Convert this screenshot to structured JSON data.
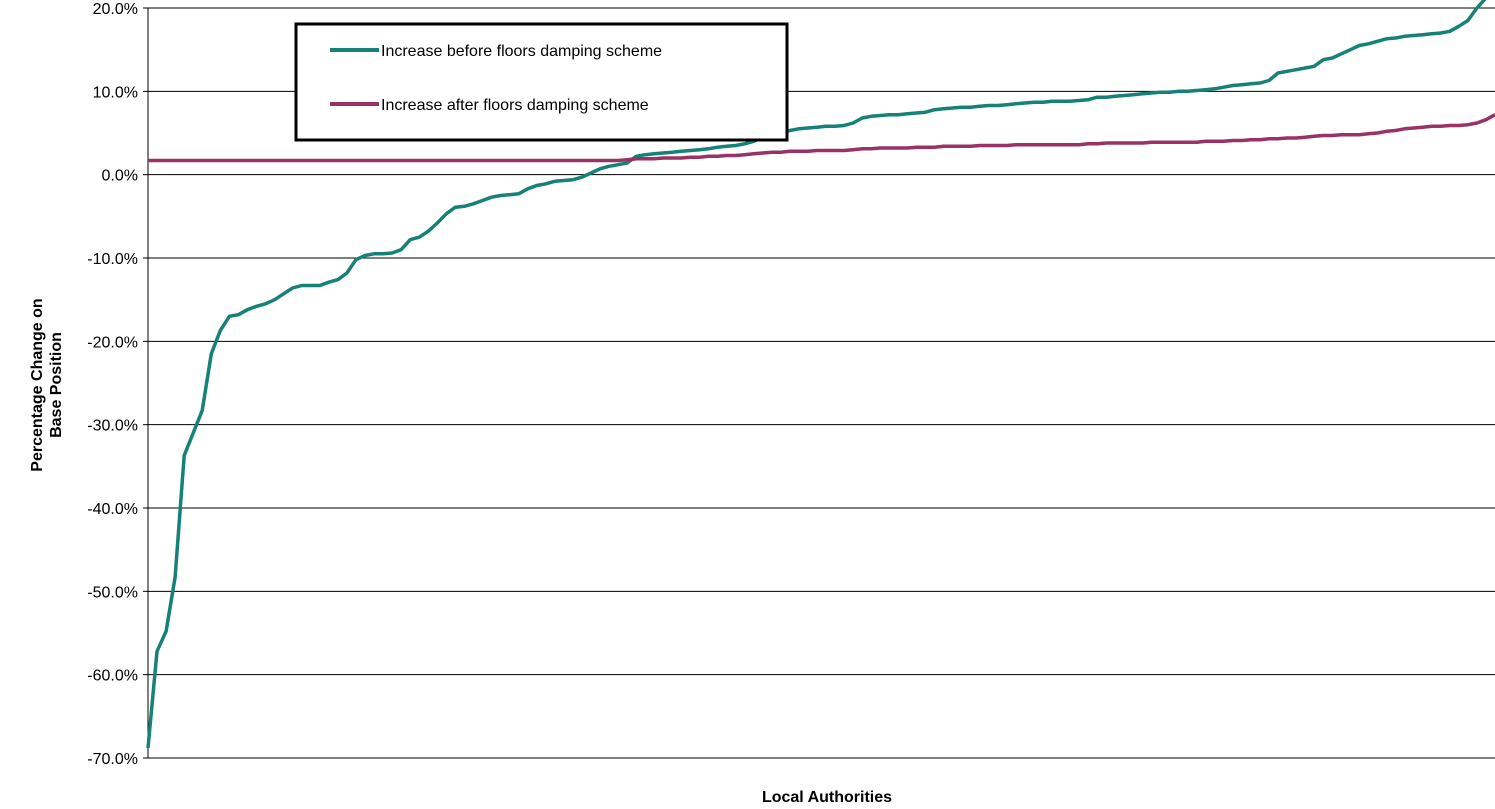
{
  "chart_data": {
    "type": "line",
    "xlabel": "Local Authorities",
    "ylabel_lines": [
      "Percentage Change on",
      "Base Position"
    ],
    "ylim": [
      -0.7,
      0.2
    ],
    "yticks": [
      0.2,
      0.1,
      0.0,
      -0.1,
      -0.2,
      -0.3,
      -0.4,
      -0.5,
      -0.6,
      -0.7
    ],
    "ytick_labels": [
      "20.0%",
      "10.0%",
      "0.0%",
      "-10.0%",
      "-20.0%",
      "-30.0%",
      "-40.0%",
      "-50.0%",
      "-60.0%",
      "-70.0%"
    ],
    "grid": true,
    "legend_position": "top-left",
    "xlim": [
      1,
      150
    ],
    "series": [
      {
        "name": "Increase before floors damping scheme",
        "color": "#168277",
        "x": [
          1,
          2,
          3,
          4,
          5,
          6,
          7,
          8,
          9,
          10,
          11,
          12,
          13,
          14,
          15,
          16,
          17,
          18,
          19,
          20,
          21,
          22,
          23,
          24,
          25,
          26,
          27,
          28,
          29,
          30,
          31,
          32,
          33,
          34,
          35,
          36,
          37,
          38,
          39,
          40,
          41,
          42,
          43,
          44,
          45,
          46,
          47,
          48,
          49,
          50,
          51,
          52,
          53,
          54,
          55,
          56,
          57,
          58,
          59,
          60,
          61,
          62,
          63,
          64,
          65,
          66,
          67,
          68,
          69,
          70,
          71,
          72,
          73,
          74,
          75,
          76,
          77,
          78,
          79,
          80,
          81,
          82,
          83,
          84,
          85,
          86,
          87,
          88,
          89,
          90,
          91,
          92,
          93,
          94,
          95,
          96,
          97,
          98,
          99,
          100,
          101,
          102,
          103,
          104,
          105,
          106,
          107,
          108,
          109,
          110,
          111,
          112,
          113,
          114,
          115,
          116,
          117,
          118,
          119,
          120,
          121,
          122,
          123,
          124,
          125,
          126,
          127,
          128,
          129,
          130,
          131,
          132,
          133,
          134,
          135,
          136,
          137,
          138,
          139,
          140,
          141,
          142,
          143,
          144,
          145,
          146,
          147,
          148,
          149,
          150
        ],
        "values": [
          -0.688,
          -0.572,
          -0.548,
          -0.483,
          -0.337,
          -0.31,
          -0.283,
          -0.215,
          -0.187,
          -0.17,
          -0.168,
          -0.162,
          -0.158,
          -0.155,
          -0.15,
          -0.143,
          -0.136,
          -0.133,
          -0.133,
          -0.133,
          -0.129,
          -0.126,
          -0.118,
          -0.102,
          -0.097,
          -0.095,
          -0.095,
          -0.094,
          -0.09,
          -0.078,
          -0.075,
          -0.068,
          -0.058,
          -0.047,
          -0.039,
          -0.038,
          -0.035,
          -0.031,
          -0.027,
          -0.025,
          -0.024,
          -0.023,
          -0.017,
          -0.013,
          -0.011,
          -0.008,
          -0.007,
          -0.006,
          -0.003,
          0.002,
          0.007,
          0.01,
          0.012,
          0.014,
          0.022,
          0.024,
          0.025,
          0.026,
          0.027,
          0.028,
          0.029,
          0.03,
          0.031,
          0.033,
          0.034,
          0.035,
          0.037,
          0.04,
          0.045,
          0.048,
          0.05,
          0.053,
          0.055,
          0.056,
          0.057,
          0.058,
          0.058,
          0.059,
          0.062,
          0.068,
          0.07,
          0.071,
          0.072,
          0.072,
          0.073,
          0.074,
          0.075,
          0.078,
          0.079,
          0.08,
          0.081,
          0.081,
          0.082,
          0.083,
          0.083,
          0.084,
          0.085,
          0.086,
          0.087,
          0.087,
          0.088,
          0.088,
          0.088,
          0.089,
          0.09,
          0.093,
          0.093,
          0.094,
          0.095,
          0.096,
          0.097,
          0.098,
          0.099,
          0.099,
          0.1,
          0.1,
          0.101,
          0.102,
          0.103,
          0.105,
          0.107,
          0.108,
          0.109,
          0.11,
          0.113,
          0.122,
          0.124,
          0.126,
          0.128,
          0.13,
          0.138,
          0.14,
          0.145,
          0.15,
          0.155,
          0.157,
          0.16,
          0.163,
          0.164,
          0.166,
          0.167,
          0.168,
          0.169,
          0.17,
          0.172,
          0.178,
          0.185,
          0.2,
          0.212,
          0.215
        ]
      },
      {
        "name": "Increase after floors damping scheme",
        "color": "#993366",
        "x": [
          1,
          2,
          3,
          4,
          5,
          6,
          7,
          8,
          9,
          10,
          11,
          12,
          13,
          14,
          15,
          16,
          17,
          18,
          19,
          20,
          21,
          22,
          23,
          24,
          25,
          26,
          27,
          28,
          29,
          30,
          31,
          32,
          33,
          34,
          35,
          36,
          37,
          38,
          39,
          40,
          41,
          42,
          43,
          44,
          45,
          46,
          47,
          48,
          49,
          50,
          51,
          52,
          53,
          54,
          55,
          56,
          57,
          58,
          59,
          60,
          61,
          62,
          63,
          64,
          65,
          66,
          67,
          68,
          69,
          70,
          71,
          72,
          73,
          74,
          75,
          76,
          77,
          78,
          79,
          80,
          81,
          82,
          83,
          84,
          85,
          86,
          87,
          88,
          89,
          90,
          91,
          92,
          93,
          94,
          95,
          96,
          97,
          98,
          99,
          100,
          101,
          102,
          103,
          104,
          105,
          106,
          107,
          108,
          109,
          110,
          111,
          112,
          113,
          114,
          115,
          116,
          117,
          118,
          119,
          120,
          121,
          122,
          123,
          124,
          125,
          126,
          127,
          128,
          129,
          130,
          131,
          132,
          133,
          134,
          135,
          136,
          137,
          138,
          139,
          140,
          141,
          142,
          143,
          144,
          145,
          146,
          147,
          148,
          149,
          150
        ],
        "values": [
          0.017,
          0.017,
          0.017,
          0.017,
          0.017,
          0.017,
          0.017,
          0.017,
          0.017,
          0.017,
          0.017,
          0.017,
          0.017,
          0.017,
          0.017,
          0.017,
          0.017,
          0.017,
          0.017,
          0.017,
          0.017,
          0.017,
          0.017,
          0.017,
          0.017,
          0.017,
          0.017,
          0.017,
          0.017,
          0.017,
          0.017,
          0.017,
          0.017,
          0.017,
          0.017,
          0.017,
          0.017,
          0.017,
          0.017,
          0.017,
          0.017,
          0.017,
          0.017,
          0.017,
          0.017,
          0.017,
          0.017,
          0.017,
          0.017,
          0.017,
          0.017,
          0.017,
          0.017,
          0.018,
          0.019,
          0.019,
          0.019,
          0.02,
          0.02,
          0.02,
          0.021,
          0.021,
          0.022,
          0.022,
          0.023,
          0.023,
          0.024,
          0.025,
          0.026,
          0.027,
          0.027,
          0.028,
          0.028,
          0.028,
          0.029,
          0.029,
          0.029,
          0.029,
          0.03,
          0.031,
          0.031,
          0.032,
          0.032,
          0.032,
          0.032,
          0.033,
          0.033,
          0.033,
          0.034,
          0.034,
          0.034,
          0.034,
          0.035,
          0.035,
          0.035,
          0.035,
          0.036,
          0.036,
          0.036,
          0.036,
          0.036,
          0.036,
          0.036,
          0.036,
          0.037,
          0.037,
          0.038,
          0.038,
          0.038,
          0.038,
          0.038,
          0.039,
          0.039,
          0.039,
          0.039,
          0.039,
          0.039,
          0.04,
          0.04,
          0.04,
          0.041,
          0.041,
          0.042,
          0.042,
          0.043,
          0.043,
          0.044,
          0.044,
          0.045,
          0.046,
          0.047,
          0.047,
          0.048,
          0.048,
          0.048,
          0.049,
          0.05,
          0.052,
          0.053,
          0.055,
          0.056,
          0.057,
          0.058,
          0.058,
          0.059,
          0.059,
          0.06,
          0.062,
          0.066,
          0.072
        ]
      }
    ]
  }
}
